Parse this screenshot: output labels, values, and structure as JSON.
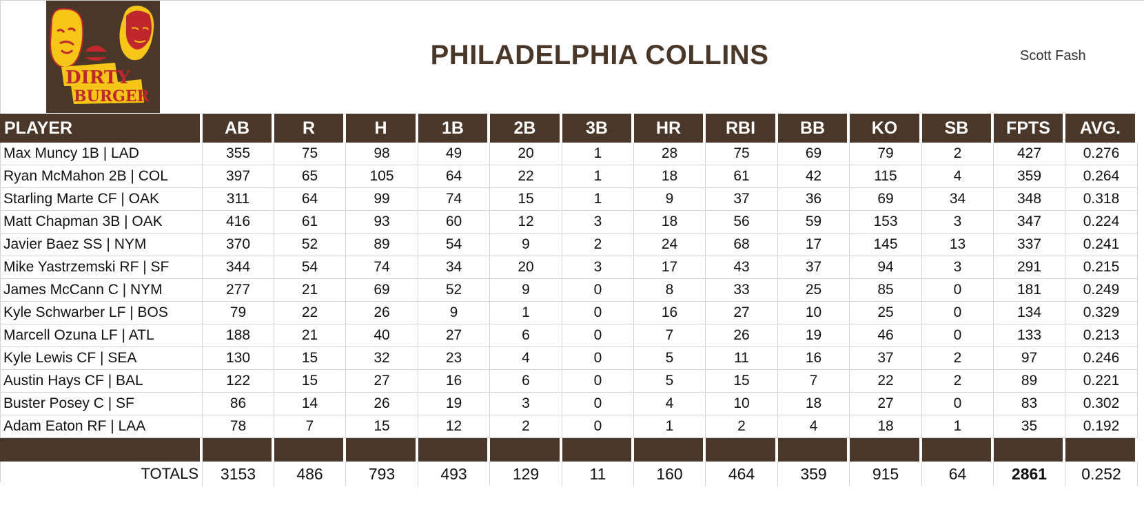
{
  "header": {
    "title": "PHILADELPHIA COLLINS",
    "owner": "Scott Fash",
    "logo": {
      "line1": "DIRTY",
      "line2": "BURGER"
    }
  },
  "colors": {
    "brand_brown": "#4a3728",
    "logo_yellow": "#f5c518",
    "logo_red": "#c0272d"
  },
  "columns": [
    "PLAYER",
    "AB",
    "R",
    "H",
    "1B",
    "2B",
    "3B",
    "HR",
    "RBI",
    "BB",
    "KO",
    "SB",
    "FPTS",
    "AVG."
  ],
  "rows": [
    [
      "Max Muncy 1B | LAD",
      "355",
      "75",
      "98",
      "49",
      "20",
      "1",
      "28",
      "75",
      "69",
      "79",
      "2",
      "427",
      "0.276"
    ],
    [
      "Ryan McMahon 2B | COL",
      "397",
      "65",
      "105",
      "64",
      "22",
      "1",
      "18",
      "61",
      "42",
      "115",
      "4",
      "359",
      "0.264"
    ],
    [
      "Starling Marte CF | OAK",
      "311",
      "64",
      "99",
      "74",
      "15",
      "1",
      "9",
      "37",
      "36",
      "69",
      "34",
      "348",
      "0.318"
    ],
    [
      "Matt Chapman 3B | OAK",
      "416",
      "61",
      "93",
      "60",
      "12",
      "3",
      "18",
      "56",
      "59",
      "153",
      "3",
      "347",
      "0.224"
    ],
    [
      "Javier Baez SS | NYM",
      "370",
      "52",
      "89",
      "54",
      "9",
      "2",
      "24",
      "68",
      "17",
      "145",
      "13",
      "337",
      "0.241"
    ],
    [
      "Mike Yastrzemski RF | SF",
      "344",
      "54",
      "74",
      "34",
      "20",
      "3",
      "17",
      "43",
      "37",
      "94",
      "3",
      "291",
      "0.215"
    ],
    [
      "James McCann C | NYM",
      "277",
      "21",
      "69",
      "52",
      "9",
      "0",
      "8",
      "33",
      "25",
      "85",
      "0",
      "181",
      "0.249"
    ],
    [
      "Kyle Schwarber LF | BOS",
      "79",
      "22",
      "26",
      "9",
      "1",
      "0",
      "16",
      "27",
      "10",
      "25",
      "0",
      "134",
      "0.329"
    ],
    [
      "Marcell Ozuna LF | ATL",
      "188",
      "21",
      "40",
      "27",
      "6",
      "0",
      "7",
      "26",
      "19",
      "46",
      "0",
      "133",
      "0.213"
    ],
    [
      "Kyle Lewis CF | SEA",
      "130",
      "15",
      "32",
      "23",
      "4",
      "0",
      "5",
      "11",
      "16",
      "37",
      "2",
      "97",
      "0.246"
    ],
    [
      "Austin Hays CF | BAL",
      "122",
      "15",
      "27",
      "16",
      "6",
      "0",
      "5",
      "15",
      "7",
      "22",
      "2",
      "89",
      "0.221"
    ],
    [
      "Buster Posey C | SF",
      "86",
      "14",
      "26",
      "19",
      "3",
      "0",
      "4",
      "10",
      "18",
      "27",
      "0",
      "83",
      "0.302"
    ],
    [
      "Adam Eaton RF | LAA",
      "78",
      "7",
      "15",
      "12",
      "2",
      "0",
      "1",
      "2",
      "4",
      "18",
      "1",
      "35",
      "0.192"
    ]
  ],
  "totals": [
    "TOTALS",
    "3153",
    "486",
    "793",
    "493",
    "129",
    "11",
    "160",
    "464",
    "359",
    "915",
    "64",
    "2861",
    "0.252"
  ]
}
